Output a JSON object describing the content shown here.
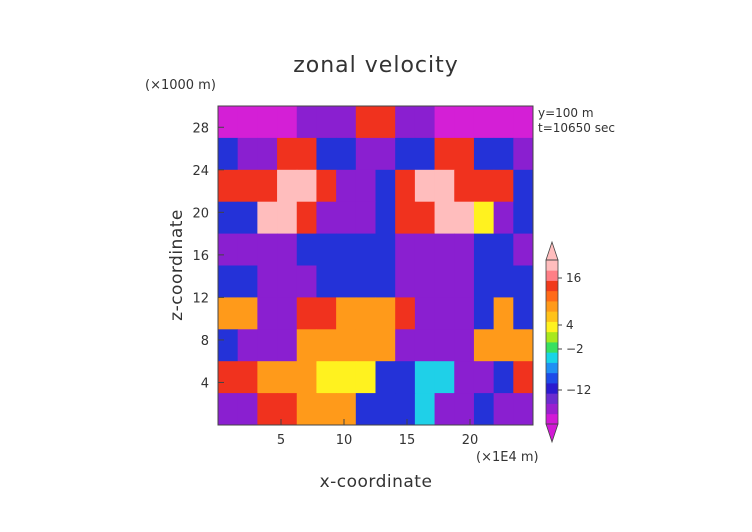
{
  "chart_data": {
    "type": "heatmap",
    "title": "zonal velocity",
    "xlabel": "x-coordinate",
    "ylabel": "z-coordinate",
    "x_unit": "(×1E4 m)",
    "y_unit": "(×1000 m)",
    "xlim": [
      0,
      25
    ],
    "ylim": [
      0,
      30
    ],
    "x_ticks": [
      "5",
      "10",
      "15",
      "20"
    ],
    "y_ticks": [
      "4",
      "8",
      "12",
      "16",
      "20",
      "24",
      "28"
    ],
    "annotations": [
      "y=100 m",
      "t=10650 sec"
    ],
    "colorbar": {
      "tick_labels": [
        "16",
        "4",
        "−2",
        "−12"
      ],
      "extend": "both",
      "colors": [
        "#d21ad6",
        "#9a1fcf",
        "#6b2ccf",
        "#2a1bcf",
        "#1d4be8",
        "#1f8ff3",
        "#18d4e6",
        "#38e060",
        "#a8e81e",
        "#fff21f",
        "#ffc21a",
        "#ff9a1a",
        "#ff6a18",
        "#f03a1c",
        "#ff7f86",
        "#ffbdbd"
      ]
    },
    "field": {
      "description_free": true,
      "rows_top_to_bottom": [
        "ppppPPPrrPPppppp",
        "bPPrrbbPPbbrrbbP",
        "rrrOOrPPbrOOrrrb",
        "bbOOrPPPbrrOOyPb",
        "PPPPbbbbbPPPPbbP",
        "bbPPPbbbbPPPPbbb",
        "ooPPrrooorPPPbob",
        "bPPPoooooPPPPooo",
        "rroooyyybbccPPbr",
        "PPrrooobbbcPPbPP"
      ]
    }
  }
}
